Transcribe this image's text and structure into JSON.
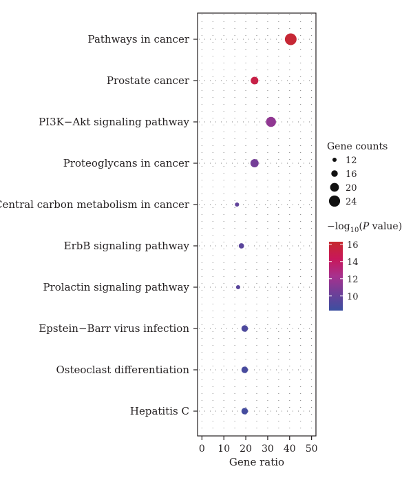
{
  "chart_data": {
    "type": "scatter",
    "title": "",
    "xlabel": "Gene ratio",
    "ylabel": "",
    "xlim": [
      -2,
      52
    ],
    "x_ticks": [
      0,
      10,
      20,
      30,
      40,
      50
    ],
    "grid": "dotted",
    "categories": [
      "Pathways in cancer",
      "Prostate cancer",
      "PI3K−Akt signaling pathway",
      "Proteoglycans in cancer",
      "Central carbon metabolism in cancer",
      "ErbB signaling pathway",
      "Prolactin signaling pathway",
      "Epstein−Barr virus infection",
      "Osteoclast differentiation",
      "Hepatitis C"
    ],
    "points": [
      {
        "term": "Pathways in cancer",
        "x": 40.5,
        "count": 25,
        "neg_log10_p": 16.0
      },
      {
        "term": "Prostate cancer",
        "x": 24,
        "count": 18,
        "neg_log10_p": 15.2
      },
      {
        "term": "PI3K−Akt signaling pathway",
        "x": 31.5,
        "count": 22,
        "neg_log10_p": 11.5
      },
      {
        "term": "Proteoglycans in cancer",
        "x": 24,
        "count": 19,
        "neg_log10_p": 10.5
      },
      {
        "term": "Central carbon metabolism in cancer",
        "x": 16,
        "count": 12,
        "neg_log10_p": 9.8
      },
      {
        "term": "ErbB signaling pathway",
        "x": 18,
        "count": 14,
        "neg_log10_p": 9.5
      },
      {
        "term": "Prolactin signaling pathway",
        "x": 16.5,
        "count": 12,
        "neg_log10_p": 9.5
      },
      {
        "term": "Epstein−Barr virus infection",
        "x": 19.5,
        "count": 16,
        "neg_log10_p": 9.0
      },
      {
        "term": "Osteoclast differentiation",
        "x": 19.5,
        "count": 16,
        "neg_log10_p": 8.8
      },
      {
        "term": "Hepatitis C",
        "x": 19.5,
        "count": 16,
        "neg_log10_p": 8.7
      }
    ],
    "size_legend": {
      "title": "Gene counts",
      "values": [
        12,
        16,
        20,
        24
      ]
    },
    "color_legend": {
      "title_prefix": "−log",
      "title_sub": "10",
      "title_open": "(",
      "title_italic": "P",
      "title_suffix": " value)",
      "ticks": [
        16,
        14,
        12,
        10
      ],
      "range": [
        8.3,
        16.3
      ],
      "colors": [
        "#c62a2f",
        "#c8175a",
        "#a7318e",
        "#6e3f98",
        "#3b4fa0"
      ]
    },
    "legend_placement": "right"
  }
}
